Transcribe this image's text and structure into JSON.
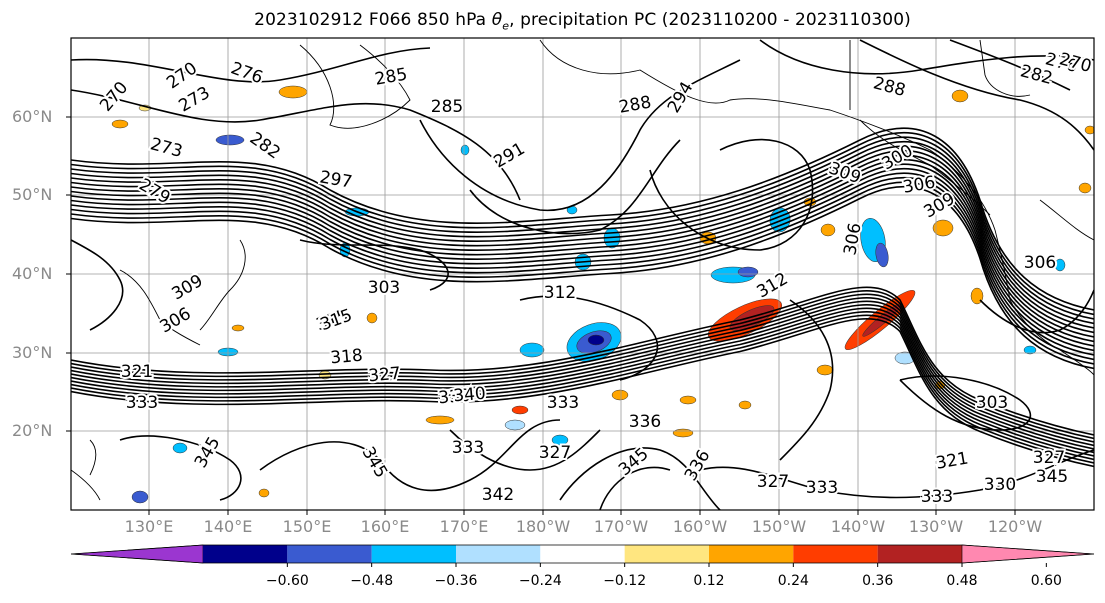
{
  "title": {
    "text_before": "2023102912 F066 850 hPa ",
    "theta": "θ",
    "theta_sub": "e",
    "text_after": ", precipitation PC (2023110200 - 2023110300)"
  },
  "map": {
    "lat_labels": [
      "60°N",
      "50°N",
      "40°N",
      "30°N",
      "20°N"
    ],
    "lon_labels": [
      "130°E",
      "140°E",
      "150°E",
      "160°E",
      "170°E",
      "180°W",
      "170°W",
      "160°W",
      "150°W",
      "140°W",
      "130°W",
      "120°W"
    ],
    "contour_labels": [
      "270",
      "270",
      "276",
      "273",
      "273",
      "282",
      "279",
      "285",
      "285",
      "288",
      "294",
      "291",
      "297",
      "288",
      "282",
      "276",
      "270",
      "300",
      "309",
      "306",
      "309",
      "306",
      "303",
      "306",
      "309",
      "306",
      "315",
      "312",
      "318",
      "315",
      "312",
      "321",
      "327",
      "330",
      "333",
      "345",
      "340",
      "333",
      "327",
      "333",
      "336",
      "345",
      "345",
      "327",
      "333",
      "333",
      "336",
      "303",
      "321",
      "327",
      "330",
      "345",
      "342"
    ],
    "coastline_color": "#000000",
    "contour_color": "#000000"
  },
  "colorbar": {
    "colors": [
      "#9b36d0",
      "#00008b",
      "#3a5bd0",
      "#00bfff",
      "#b0e0ff",
      "#ffffff",
      "#ffe680",
      "#ffa500",
      "#ff3d00",
      "#b22222",
      "#ff88b0"
    ],
    "ticks": [
      "−0.60",
      "−0.48",
      "−0.36",
      "−0.24",
      "−0.12",
      "0.12",
      "0.24",
      "0.36",
      "0.48",
      "0.60"
    ]
  }
}
